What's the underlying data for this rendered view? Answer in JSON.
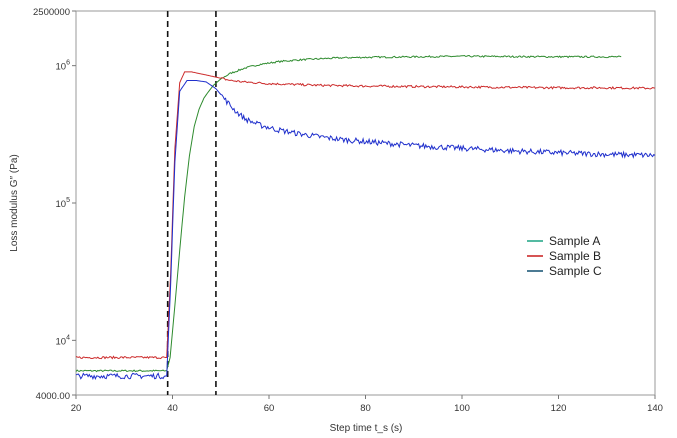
{
  "chart_data": {
    "type": "line",
    "title": "",
    "xlabel": "Step time t_s (s)",
    "ylabel": "Loss modulus G″ (Pa)",
    "xlim": [
      20,
      140
    ],
    "ylim": [
      4000,
      2500000
    ],
    "yscale": "log",
    "x_ticks": [
      20,
      40,
      60,
      80,
      100,
      120,
      140
    ],
    "y_ticks": [
      {
        "value": 4000,
        "label": "4000.00"
      },
      {
        "value": 10000,
        "label": "10",
        "exp": "4"
      },
      {
        "value": 100000,
        "label": "10",
        "exp": "5"
      },
      {
        "value": 1000000,
        "label": "10",
        "exp": "6"
      },
      {
        "value": 2500000,
        "label": "2500000"
      }
    ],
    "grid": false,
    "legend_position": "right-middle",
    "vertical_markers": [
      39,
      49
    ],
    "series": [
      {
        "name": "Sample A",
        "color": "#2e8b2e",
        "x": [
          20,
          38.8,
          39.5,
          40.5,
          41.5,
          42.5,
          43.5,
          44.5,
          45.5,
          46.5,
          47.5,
          48.5,
          50,
          52,
          55,
          58,
          62,
          66,
          70,
          75,
          80,
          90,
          100,
          110,
          120,
          130,
          133
        ],
        "y": [
          6000,
          6000,
          7500,
          18000,
          45000,
          110000,
          220000,
          360000,
          480000,
          580000,
          650000,
          720000,
          800000,
          880000,
          960000,
          1020000,
          1070000,
          1100000,
          1120000,
          1140000,
          1150000,
          1160000,
          1170000,
          1165000,
          1160000,
          1160000,
          1160000
        ]
      },
      {
        "name": "Sample B",
        "color": "#cc2a2a",
        "x": [
          20,
          38.8,
          39.6,
          40.5,
          41.5,
          42.5,
          44,
          46,
          48,
          50,
          52,
          55,
          60,
          65,
          70,
          80,
          90,
          100,
          110,
          120,
          130,
          140
        ],
        "y": [
          7500,
          7500,
          30000,
          250000,
          750000,
          900000,
          900000,
          870000,
          840000,
          810000,
          780000,
          760000,
          740000,
          730000,
          720000,
          710000,
          705000,
          700000,
          695000,
          690000,
          690000,
          685000
        ]
      },
      {
        "name": "Sample C",
        "color": "#1f2fcc",
        "x": [
          20,
          38.8,
          39.6,
          40.5,
          41.5,
          43,
          45,
          47,
          49,
          51,
          53,
          55,
          58,
          62,
          66,
          70,
          75,
          80,
          90,
          100,
          110,
          120,
          130,
          140
        ],
        "y": [
          5500,
          5500,
          25000,
          200000,
          650000,
          780000,
          780000,
          760000,
          680000,
          560000,
          470000,
          410000,
          370000,
          340000,
          320000,
          305000,
          290000,
          280000,
          262000,
          250000,
          240000,
          232000,
          226000,
          222000
        ]
      }
    ]
  }
}
